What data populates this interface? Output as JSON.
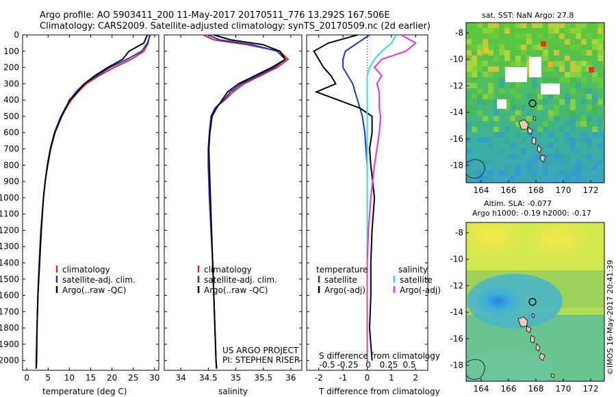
{
  "header": {
    "line1": "Argo profile: AO 5903411_200 11-May-2017 20170511_776 13.292S 167.506E",
    "line2": "Climatology: CARS2009. Satellite-adjusted climatology: synTS_20170509.nc (2d earlier)"
  },
  "credits": {
    "project": "US ARGO PROJECT",
    "pi": "PI: STEPHEN RISER",
    "stamp": "©IMOS 16-May-2017 20:41:39"
  },
  "colors": {
    "climatology": "#e8231e",
    "satellite": "#1a33d6",
    "argo": "#000000",
    "sat_salinity": "#29e0e0",
    "argo_salinity": "#f22bd8"
  },
  "chart_data": [
    {
      "type": "line",
      "xlabel": "temperature (deg C)",
      "xlim": [
        -1,
        31
      ],
      "xticks": [
        0,
        5,
        10,
        15,
        20,
        25,
        30
      ],
      "ylim": [
        0,
        2060
      ],
      "yticks": [
        0,
        100,
        200,
        300,
        400,
        500,
        600,
        700,
        800,
        900,
        1000,
        1100,
        1200,
        1300,
        1400,
        1500,
        1600,
        1700,
        1800,
        1900,
        2000
      ],
      "legend": [
        "climatology",
        "satellite-adj. clim.",
        "Argo(..raw -QC)"
      ],
      "legend_position": "bottom-center",
      "depth": [
        0,
        50,
        100,
        150,
        200,
        250,
        300,
        350,
        400,
        450,
        500,
        600,
        700,
        800,
        900,
        1000,
        1200,
        1400,
        1600,
        1800,
        2000,
        2050
      ],
      "series": [
        {
          "name": "climatology",
          "values": [
            28.8,
            28.5,
            27.5,
            24.5,
            20.5,
            17,
            14,
            12,
            10.5,
            9.2,
            8,
            6.5,
            5.5,
            4.8,
            4.3,
            3.9,
            3.3,
            2.9,
            2.6,
            2.4,
            2.2,
            2.2
          ]
        },
        {
          "name": "satellite-adj. clim.",
          "values": [
            29.0,
            28.3,
            27.0,
            23.5,
            19.5,
            16.5,
            13.5,
            11.5,
            10.2,
            9,
            8,
            6.5,
            5.5,
            4.8,
            4.3,
            3.9,
            3.3,
            2.9,
            2.6,
            2.4,
            2.2,
            2.2
          ]
        },
        {
          "name": "Argo(..raw -QC)",
          "values": [
            28.3,
            27.5,
            24,
            22.5,
            19,
            16,
            13.5,
            12,
            10,
            9.2,
            8.2,
            6.6,
            5.6,
            4.9,
            4.3,
            3.9,
            3.4,
            3.0,
            2.6,
            2.4,
            2.3,
            2.2
          ]
        }
      ]
    },
    {
      "type": "line",
      "xlabel": "salinity",
      "xlim": [
        33.7,
        36.2
      ],
      "xticks": [
        34,
        34.5,
        35,
        35.5,
        36
      ],
      "ylim": [
        0,
        2060
      ],
      "legend": [
        "climatology",
        "satellite-adj. clim.",
        "Argo(..raw -QC)"
      ],
      "legend_position": "bottom-center",
      "depth": [
        0,
        30,
        60,
        100,
        150,
        200,
        250,
        300,
        350,
        400,
        450,
        500,
        600,
        700,
        800,
        1000,
        1200,
        1400,
        1600,
        1800,
        2000,
        2050
      ],
      "series": [
        {
          "name": "climatology",
          "values": [
            34.4,
            34.6,
            35.2,
            35.8,
            35.95,
            35.75,
            35.45,
            35.15,
            34.95,
            34.8,
            34.62,
            34.55,
            34.52,
            34.5,
            34.5,
            34.52,
            34.55,
            34.58,
            34.6,
            34.62,
            34.64,
            34.65
          ]
        },
        {
          "name": "satellite-adj. clim.",
          "values": [
            34.5,
            34.7,
            35.3,
            35.75,
            35.9,
            35.7,
            35.4,
            35.1,
            34.9,
            34.78,
            34.62,
            34.55,
            34.52,
            34.5,
            34.5,
            34.52,
            34.55,
            34.58,
            34.6,
            34.62,
            34.64,
            34.65
          ]
        },
        {
          "name": "Argo(..raw -QC)",
          "values": [
            34.6,
            34.9,
            35.5,
            35.8,
            35.9,
            35.65,
            35.35,
            35.05,
            34.85,
            34.75,
            34.65,
            34.57,
            34.53,
            34.51,
            34.52,
            34.54,
            34.56,
            34.58,
            34.6,
            34.62,
            34.64,
            34.65
          ]
        }
      ]
    },
    {
      "type": "line",
      "xlabel": "T difference from climatology",
      "x2label": "S difference from climatology",
      "xlim": [
        -2.5,
        2.5
      ],
      "xticks": [
        -2,
        -1,
        0,
        1,
        2
      ],
      "x2ticks": [
        "-0.5",
        "-0.25",
        "0",
        "0.25",
        "0.5"
      ],
      "ylim": [
        0,
        2060
      ],
      "legend_titles": [
        "temperature",
        "salinity"
      ],
      "legend": [
        "satellite",
        "Argo(-adj)",
        "satellite",
        "Argo(-adj)"
      ],
      "depth": [
        0,
        50,
        100,
        150,
        200,
        250,
        300,
        350,
        400,
        450,
        500,
        600,
        700,
        800,
        1000,
        1200,
        1400,
        1600,
        1800,
        2000
      ],
      "series": [
        {
          "name": "temperature satellite",
          "values": [
            0.1,
            -0.4,
            -0.9,
            -1.0,
            -1.0,
            -0.8,
            -0.6,
            -0.5,
            -0.4,
            -0.3,
            -0.2,
            -0.1,
            -0.05,
            0,
            0,
            0,
            0,
            0,
            0,
            0
          ]
        },
        {
          "name": "temperature Argo(-adj)",
          "values": [
            -0.4,
            -1.6,
            -2.2,
            -2.0,
            -1.8,
            -1.5,
            -1.3,
            -2.1,
            -1.2,
            -0.3,
            0.2,
            0.2,
            0.1,
            0.15,
            0.3,
            0.2,
            0.15,
            0.15,
            0.1,
            0.2
          ]
        },
        {
          "name": "salinity satellite",
          "values": [
            1.2,
            1.0,
            0.6,
            0.3,
            0.1,
            0,
            0,
            0,
            0,
            0,
            0,
            0,
            0,
            0,
            0,
            0,
            0,
            0,
            0,
            0
          ]
        },
        {
          "name": "salinity Argo(-adj)",
          "values": [
            1.4,
            2.0,
            1.6,
            0.6,
            0.3,
            0.6,
            0.4,
            0.5,
            0.5,
            0.5,
            0.55,
            0.5,
            0.4,
            0.3,
            0.15,
            0.05,
            0,
            0,
            0,
            0
          ]
        }
      ]
    }
  ],
  "maps": [
    {
      "title": "sat. SST: NaN Argo: 27.8",
      "xticks": [
        "164",
        "166",
        "168",
        "170",
        "172"
      ],
      "yticks": [
        "-8",
        "-10",
        "-12",
        "-14",
        "-16",
        "-18"
      ]
    },
    {
      "title1": "Altim. SLA: -0.077",
      "title2": "Argo h1000: -0.19 h2000: -0.17",
      "xticks": [
        "164",
        "166",
        "168",
        "170",
        "172"
      ],
      "yticks": [
        "-8",
        "-10",
        "-12",
        "-14",
        "-16",
        "-18"
      ]
    }
  ]
}
